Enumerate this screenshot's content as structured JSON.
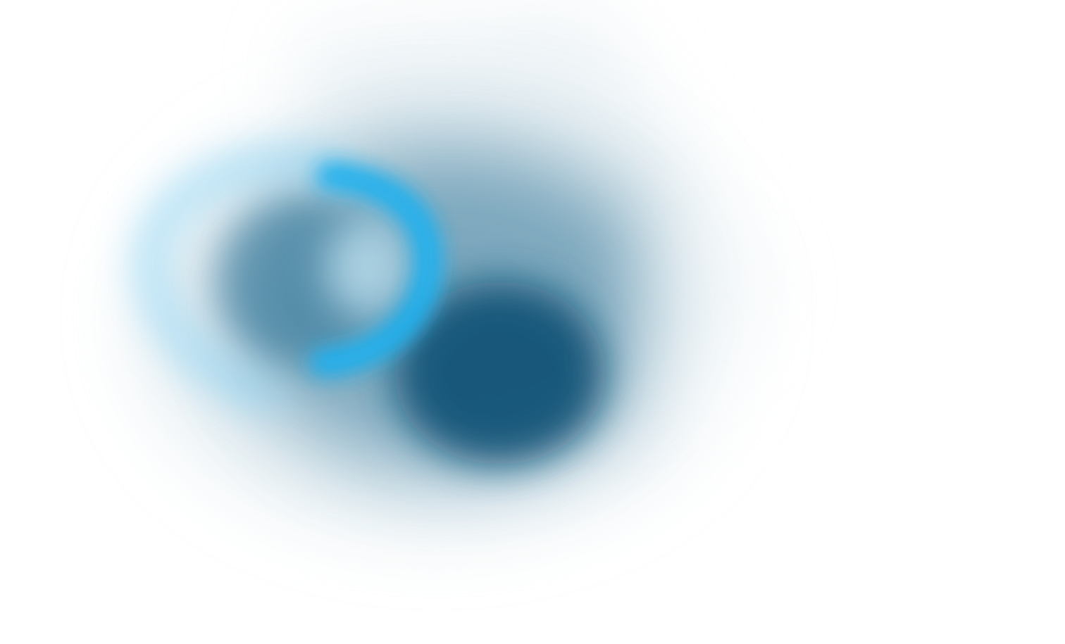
{
  "background_color": "#ffffff",
  "palette": {
    "deep_navy": "#0a4f73",
    "steel_blue": "#3f7f9f",
    "mist": "#c9dbe4",
    "bright_cyan": "#1ab1ef",
    "pale_cyan": "#8fd6f5"
  },
  "artwork": {
    "description_icon": "abstract-blurred-swirl"
  }
}
